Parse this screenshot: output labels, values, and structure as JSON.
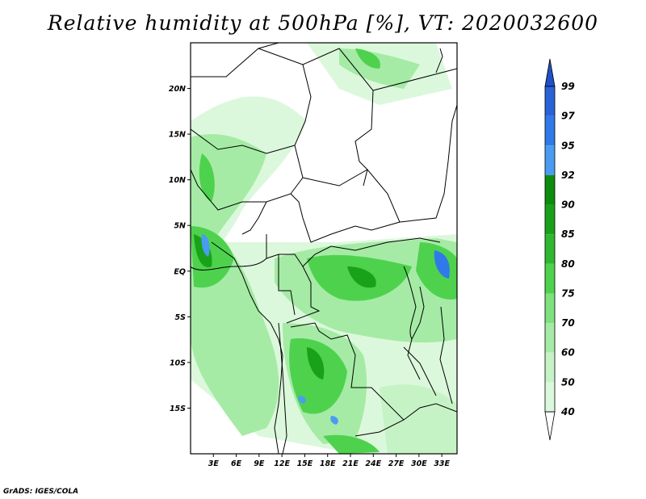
{
  "title": "Relative humidity at 500hPa [%], VT: 2020032600",
  "credit": "GrADS: IGES/COLA",
  "map": {
    "lon_range": [
      0,
      35
    ],
    "lat_range": [
      -20,
      25
    ],
    "lat_ticks": [
      {
        "value": 20,
        "label": "20N"
      },
      {
        "value": 15,
        "label": "15N"
      },
      {
        "value": 10,
        "label": "10N"
      },
      {
        "value": 5,
        "label": "5N"
      },
      {
        "value": 0,
        "label": "EQ"
      },
      {
        "value": -5,
        "label": "5S"
      },
      {
        "value": -10,
        "label": "10S"
      },
      {
        "value": -15,
        "label": "15S"
      }
    ],
    "lon_ticks": [
      {
        "value": 3,
        "label": "3E"
      },
      {
        "value": 6,
        "label": "6E"
      },
      {
        "value": 9,
        "label": "9E"
      },
      {
        "value": 12,
        "label": "12E"
      },
      {
        "value": 15,
        "label": "15E"
      },
      {
        "value": 18,
        "label": "18E"
      },
      {
        "value": 21,
        "label": "21E"
      },
      {
        "value": 24,
        "label": "24E"
      },
      {
        "value": 27,
        "label": "27E"
      },
      {
        "value": 30,
        "label": "30E"
      },
      {
        "value": 33,
        "label": "33E"
      }
    ]
  },
  "colorbar": {
    "levels": [
      {
        "label": "99",
        "color": "#2a62d8"
      },
      {
        "label": "97",
        "color": "#2f7ae8"
      },
      {
        "label": "95",
        "color": "#4a9cf0"
      },
      {
        "label": "92",
        "color": "#0e8c0e"
      },
      {
        "label": "90",
        "color": "#19a219"
      },
      {
        "label": "85",
        "color": "#2fb82f"
      },
      {
        "label": "80",
        "color": "#4ed24e"
      },
      {
        "label": "75",
        "color": "#7ee17e"
      },
      {
        "label": "70",
        "color": "#a5eba5"
      },
      {
        "label": "60",
        "color": "#c6f3c6"
      },
      {
        "label": "50",
        "color": "#dcf8dc"
      },
      {
        "label": "40",
        "color": "#eefcee"
      }
    ],
    "top_arrow_color": "#1f50c8",
    "bottom_arrow_color": "#ffffff"
  }
}
